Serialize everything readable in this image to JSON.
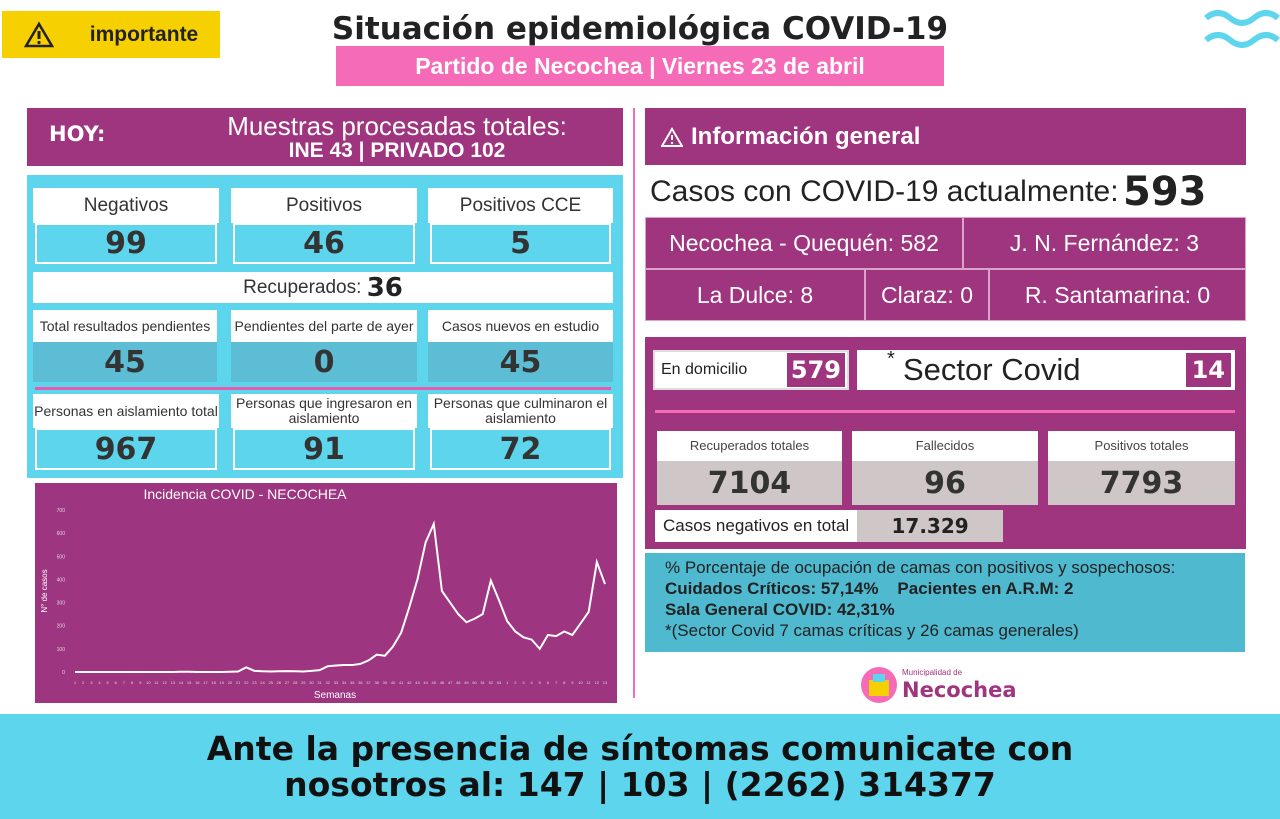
{
  "header": {
    "badge": "importante",
    "title": "Situación epidemiológica COVID-19",
    "subtitle": "Partido de Necochea | Viernes 23 de abril"
  },
  "left": {
    "hoy": "HOY:",
    "muestras_title": "Muestras procesadas totales:",
    "muestras_detail": "INE 43 | PRIVADO 102",
    "row1": [
      {
        "label": "Negativos",
        "value": 99
      },
      {
        "label": "Positivos",
        "value": 46
      },
      {
        "label": "Positivos CCE",
        "value": 5
      }
    ],
    "recuperados_label": "Recuperados:",
    "recuperados_value": 36,
    "row2": [
      {
        "label": "Total resultados pendientes",
        "value": 45
      },
      {
        "label": "Pendientes del parte de ayer",
        "value": 0
      },
      {
        "label": "Casos nuevos en estudio",
        "value": 45
      }
    ],
    "row3": [
      {
        "label": "Personas en aislamiento total",
        "value": 967
      },
      {
        "label": "Personas que ingresaron en aislamiento",
        "value": 91
      },
      {
        "label": "Personas que culminaron el aislamiento",
        "value": 72
      }
    ]
  },
  "chart_data": {
    "type": "line",
    "title": "Incidencia COVID - NECOCHEA",
    "x_label": "Semanas",
    "y_label": "N° de casos",
    "categories": [
      "1",
      "2",
      "3",
      "4",
      "5",
      "6",
      "7",
      "8",
      "9",
      "10",
      "11",
      "12",
      "13",
      "14",
      "15",
      "16",
      "17",
      "18",
      "19",
      "20",
      "21",
      "22",
      "23",
      "24",
      "25",
      "26",
      "27",
      "28",
      "29",
      "30",
      "31",
      "32",
      "33",
      "34",
      "35",
      "36",
      "37",
      "38",
      "39",
      "40",
      "41",
      "42",
      "43",
      "44",
      "45",
      "46",
      "47",
      "48",
      "49",
      "50",
      "51",
      "52",
      "53",
      "1",
      "2",
      "3",
      "4",
      "5",
      "6",
      "7",
      "8",
      "9",
      "10",
      "11",
      "12",
      "13"
    ],
    "series": [
      {
        "name": "Casos",
        "color": "#ffffff",
        "values": [
          0,
          0,
          0,
          0,
          0,
          0,
          0,
          0,
          0,
          0,
          0,
          0,
          0,
          1,
          1,
          0,
          0,
          0,
          0,
          1,
          2,
          20,
          5,
          3,
          2,
          3,
          4,
          3,
          2,
          5,
          8,
          25,
          28,
          30,
          30,
          35,
          50,
          75,
          70,
          110,
          170,
          280,
          400,
          560,
          640,
          350,
          300,
          250,
          215,
          230,
          250,
          395,
          310,
          220,
          175,
          150,
          140,
          100,
          160,
          155,
          175,
          160,
          210,
          260,
          475,
          380
        ]
      }
    ],
    "ylim": [
      0,
      700
    ],
    "yticks": [
      0,
      100,
      200,
      300,
      400,
      500,
      600,
      700
    ],
    "grid": false
  },
  "right": {
    "info_title": "Información general",
    "casos_label": "Casos con COVID-19 actualmente:",
    "casos_value": 593,
    "localidades": [
      "Necochea - Quequén: 582",
      "J. N. Fernández: 3",
      "La Dulce: 8",
      "Claraz: 0",
      "R. Santamarina: 0"
    ],
    "domicilio_label": "En domicilio",
    "domicilio_value": 579,
    "sector_label": "Sector Covid",
    "sector_value": 14,
    "totals": [
      {
        "label": "Recuperados totales",
        "value": 7104
      },
      {
        "label": "Fallecidos",
        "value": 96
      },
      {
        "label": "Positivos totales",
        "value": 7793
      }
    ],
    "negativos_label": "Casos negativos en total",
    "negativos_value": "17.329",
    "ocupacion": [
      "% Porcentaje de ocupación de camas con positivos y sospechosos:",
      "Cuidados Críticos: 57,14%",
      "Pacientes en A.R.M: 2",
      "Sala General COVID: 42,31%",
      "*(Sector Covid 7 camas críticas y  26 camas generales)"
    ],
    "municipio_small": "Municipalidad de",
    "municipio": "Necochea"
  },
  "footer": {
    "line1": "Ante la presencia de síntomas comunicate con",
    "line2": "nosotros al: 147 | 103 | (2262) 314377"
  }
}
